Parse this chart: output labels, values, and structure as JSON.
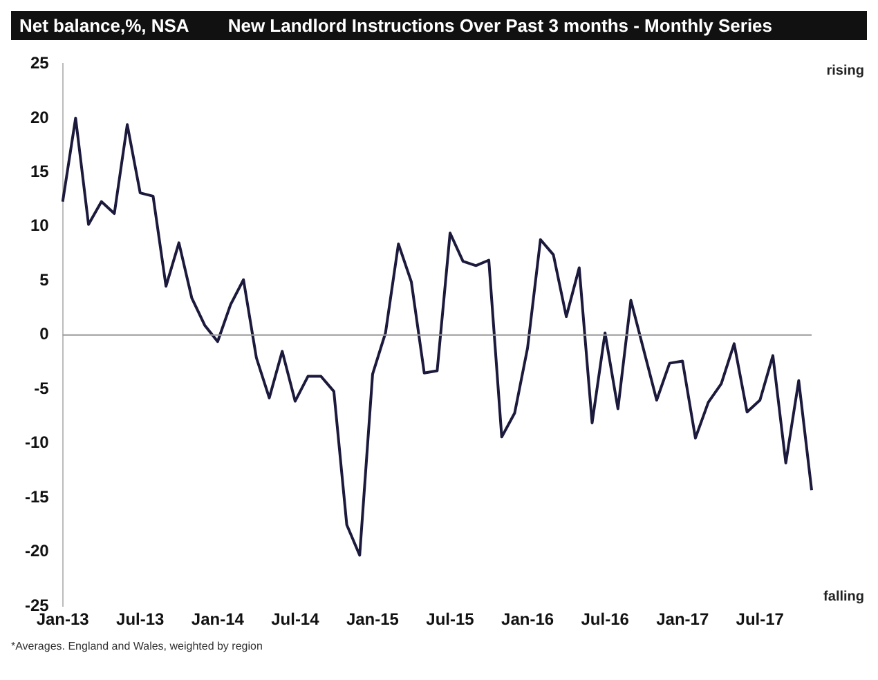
{
  "chart_data": {
    "type": "line",
    "title": "New Landlord Instructions Over Past 3 months - Monthly Series",
    "ylabel": "Net balance,%, NSA",
    "categories": [
      "Jan-13",
      null,
      null,
      null,
      null,
      null,
      "Jul-13",
      null,
      null,
      null,
      null,
      null,
      "Jan-14",
      null,
      null,
      null,
      null,
      null,
      "Jul-14",
      null,
      null,
      null,
      null,
      null,
      "Jan-15",
      null,
      null,
      null,
      null,
      null,
      "Jul-15",
      null,
      null,
      null,
      null,
      null,
      "Jan-16",
      null,
      null,
      null,
      null,
      null,
      "Jul-16",
      null,
      null,
      null,
      null,
      null,
      "Jan-17",
      null,
      null,
      null,
      null,
      null,
      "Jul-17",
      null,
      null,
      null,
      null
    ],
    "series": [
      {
        "color": "#1c1a3c",
        "values": [
          12.3,
          20,
          10.2,
          12.3,
          11.2,
          19.4,
          13.1,
          12.8,
          4.5,
          8.5,
          3.4,
          0.9,
          -0.6,
          2.8,
          5.1,
          -2.1,
          -5.8,
          -1.5,
          -6.1,
          -3.8,
          -3.8,
          -5.2,
          -17.5,
          -20.3,
          -3.6,
          0.2,
          8.4,
          4.9,
          -3.5,
          -3.3,
          9.4,
          6.8,
          6.4,
          6.9,
          -9.4,
          -7.2,
          -1.2,
          8.8,
          7.4,
          1.7,
          6.2,
          -8.1,
          0.2,
          -6.8,
          3.2,
          -1.4,
          -6,
          -2.6,
          -2.4,
          -9.5,
          -6.2,
          -4.5,
          -0.8,
          -7.1,
          -6,
          -1.9,
          -11.8,
          -4.2,
          -14.3
        ]
      }
    ],
    "ylim": [
      -25,
      25
    ],
    "yticks": [
      -25,
      -20,
      -15,
      -10,
      -5,
      0,
      5,
      10,
      15,
      20,
      25
    ],
    "grid": false,
    "legend": false,
    "marker": "none",
    "line_style": "solid",
    "ref_lines": [
      {
        "axis": "y",
        "value": 0,
        "color": "#9a9a9a"
      }
    ],
    "annotations": [
      "rising",
      "falling",
      "*Averages. England and Wales, weighted by region"
    ]
  }
}
